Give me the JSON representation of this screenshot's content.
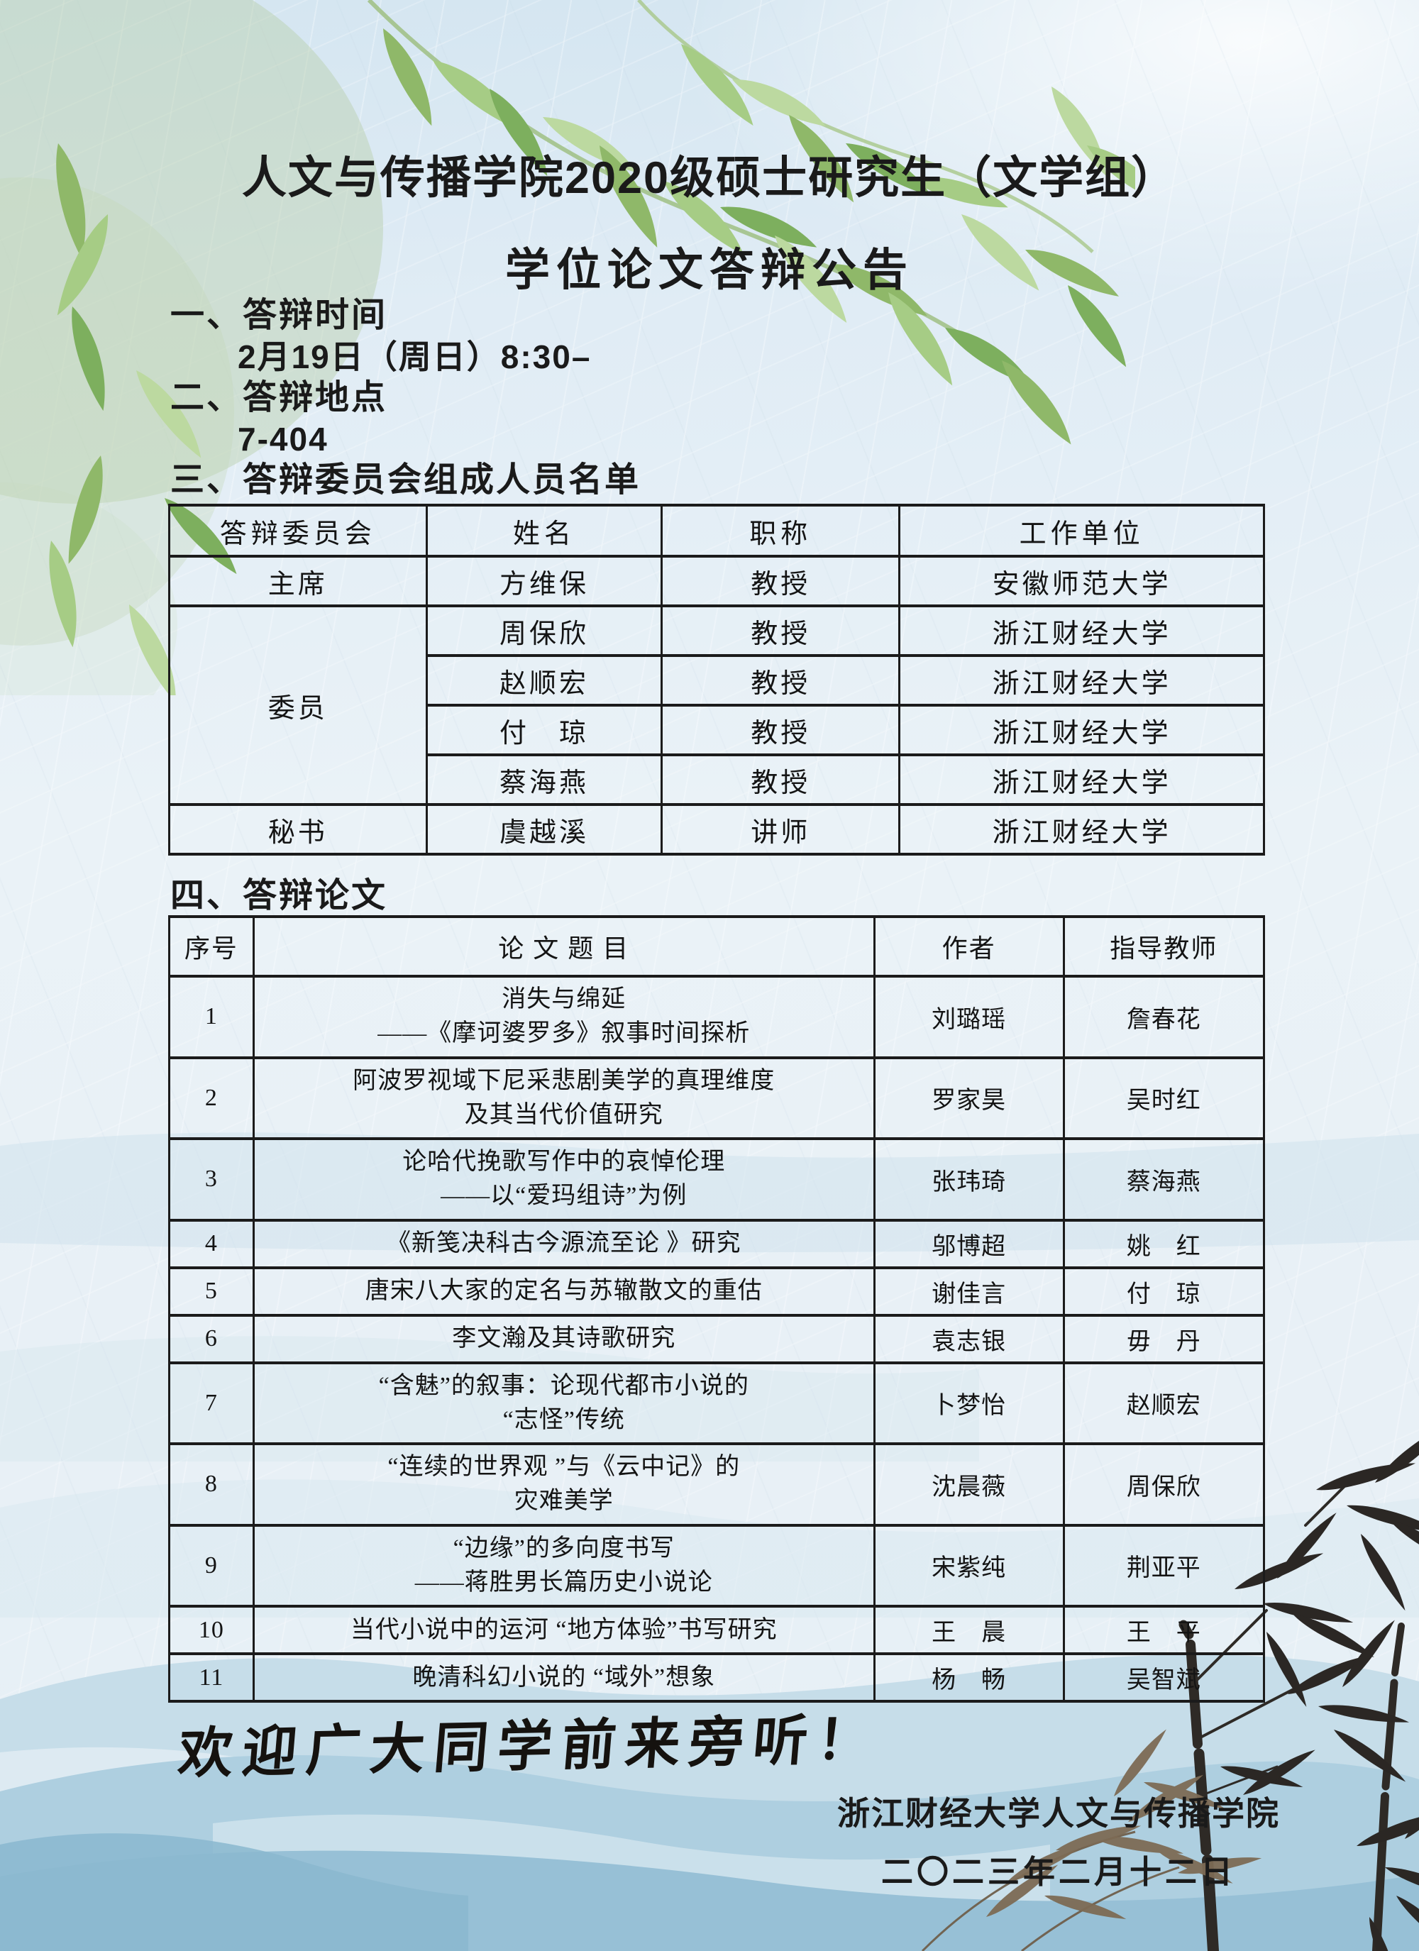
{
  "page": {
    "title_line1": "人文与传播学院2020级硕士研究生（文学组）",
    "title_line2": "学位论文答辩公告"
  },
  "sections": {
    "s1_label": "一、答辩时间",
    "s1_value": "2月19日（周日）8:30–",
    "s2_label": "二、答辩地点",
    "s2_value": "7-404",
    "s3_label": "三、答辩委员会组成人员名单",
    "s4_label": "四、答辩论文"
  },
  "committee": {
    "headers": [
      "答辩委员会",
      "姓名",
      "职称",
      "工作单位"
    ],
    "roles": {
      "chair": "主席",
      "member": "委员",
      "secretary": "秘书"
    },
    "rows": [
      {
        "name": "方维保",
        "title": "教授",
        "org": "安徽师范大学"
      },
      {
        "name": "周保欣",
        "title": "教授",
        "org": "浙江财经大学"
      },
      {
        "name": "赵顺宏",
        "title": "教授",
        "org": "浙江财经大学"
      },
      {
        "name": "付　琼",
        "title": "教授",
        "org": "浙江财经大学"
      },
      {
        "name": "蔡海燕",
        "title": "教授",
        "org": "浙江财经大学"
      },
      {
        "name": "虞越溪",
        "title": "讲师",
        "org": "浙江财经大学"
      }
    ]
  },
  "theses": {
    "headers": [
      "序号",
      "论 文 题 目",
      "作者",
      "指导教师"
    ],
    "rows": [
      {
        "no": "1",
        "title_lines": [
          "消失与绵延",
          "——《摩诃婆罗多》叙事时间探析"
        ],
        "author": "刘璐瑶",
        "advisor": "詹春花"
      },
      {
        "no": "2",
        "title_lines": [
          "阿波罗视域下尼采悲剧美学的真理维度",
          "及其当代价值研究"
        ],
        "author": "罗家昊",
        "advisor": "吴时红"
      },
      {
        "no": "3",
        "title_lines": [
          "论哈代挽歌写作中的哀悼伦理",
          "——以“爱玛组诗”为例"
        ],
        "author": "张玮琦",
        "advisor": "蔡海燕"
      },
      {
        "no": "4",
        "title_lines": [
          "《新笺决科古今源流至论 》研究"
        ],
        "author": "邬博超",
        "advisor": "姚　红"
      },
      {
        "no": "5",
        "title_lines": [
          "唐宋八大家的定名与苏辙散文的重估"
        ],
        "author": "谢佳言",
        "advisor": "付　琼"
      },
      {
        "no": "6",
        "title_lines": [
          "李文瀚及其诗歌研究"
        ],
        "author": "袁志银",
        "advisor": "毋　丹"
      },
      {
        "no": "7",
        "title_lines": [
          "“含魅”的叙事：论现代都市小说的",
          "“志怪”传统"
        ],
        "author": "卜梦怡",
        "advisor": "赵顺宏"
      },
      {
        "no": "8",
        "title_lines": [
          "“连续的世界观 ”与《云中记》的",
          "灾难美学"
        ],
        "author": "沈晨薇",
        "advisor": "周保欣"
      },
      {
        "no": "9",
        "title_lines": [
          "“边缘”的多向度书写",
          "——蒋胜男长篇历史小说论"
        ],
        "author": "宋紫纯",
        "advisor": "荆亚平"
      },
      {
        "no": "10",
        "title_lines": [
          "当代小说中的运河 “地方体验”书写研究"
        ],
        "author": "王　晨",
        "advisor": "王　平"
      },
      {
        "no": "11",
        "title_lines": [
          "晚清科幻小说的 “域外”想象"
        ],
        "author": "杨　畅",
        "advisor": "吴智斌"
      }
    ]
  },
  "footer": {
    "welcome": "欢迎广大同学前来旁听！",
    "org": "浙江财经大学人文与传播学院",
    "date": "二〇二三年二月十二日"
  },
  "colors": {
    "ink_text": "#1a1a1a",
    "table_border": "#1b1b1b",
    "mountain_light": "#c6dde9",
    "mountain_mid": "#aecfe0",
    "mountain_deep": "#97c0d6",
    "bamboo_green": "#9dc57d",
    "bamboo_ink": "#2e2a26",
    "bamboo_brown": "#7d6b55"
  }
}
